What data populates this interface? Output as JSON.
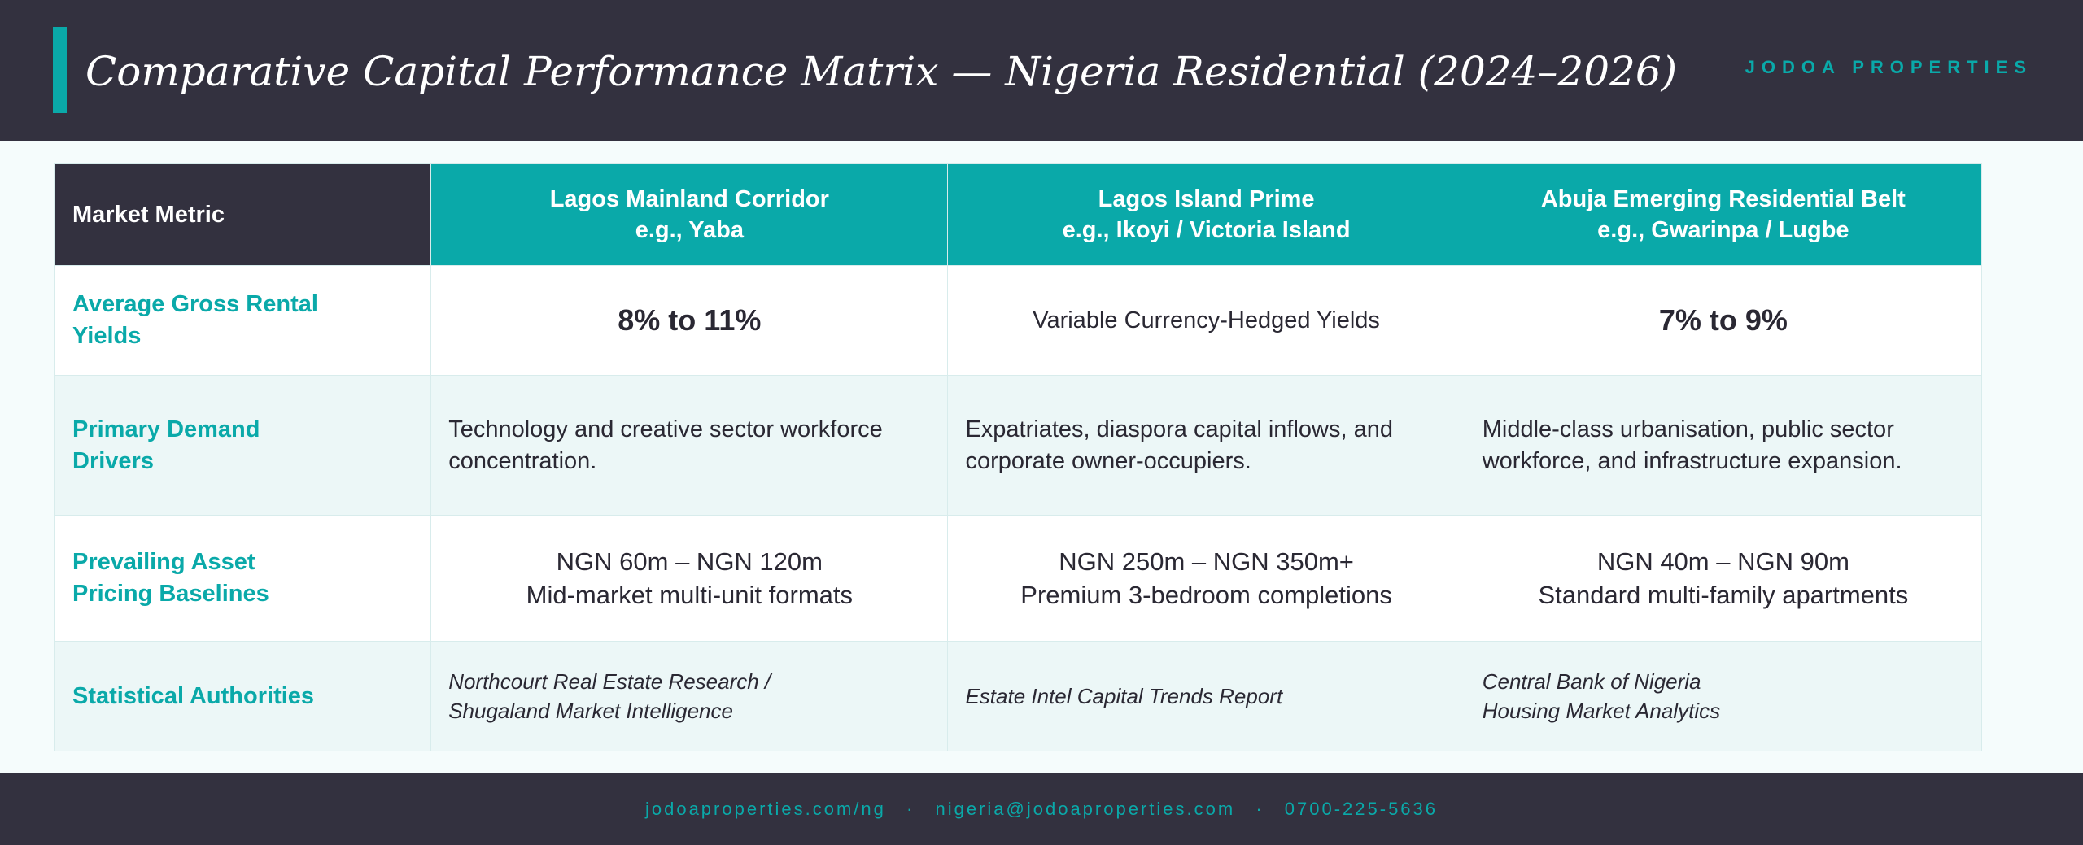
{
  "header": {
    "title": "Comparative Capital Performance Matrix — Nigeria Residential (2024–2026)",
    "brand": "JODOA PROPERTIES"
  },
  "table": {
    "metric_header": "Market Metric",
    "markets": [
      {
        "name": "Lagos Mainland Corridor",
        "example": "e.g., Yaba"
      },
      {
        "name": "Lagos Island Prime",
        "example": "e.g., Ikoyi / Victoria Island"
      },
      {
        "name": "Abuja Emerging Residential Belt",
        "example": "e.g., Gwarinpa / Lugbe"
      }
    ],
    "rows": {
      "yields": {
        "label": "Average Gross Rental Yields",
        "values": [
          "8% to 11%",
          "Variable Currency-Hedged Yields",
          "7% to 9%"
        ]
      },
      "drivers": {
        "label": "Primary Demand Drivers",
        "values": [
          "Technology and creative sector workforce concentration.",
          "Expatriates, diaspora capital inflows, and corporate owner-occupiers.",
          "Middle-class urbanisation, public sector workforce, and infrastructure expansion."
        ]
      },
      "pricing": {
        "label": "Prevailing Asset Pricing Baselines",
        "values": [
          {
            "range": "NGN 60m – NGN 120m",
            "format": "Mid-market multi-unit formats"
          },
          {
            "range": "NGN 250m – NGN 350m+",
            "format": "Premium 3-bedroom completions"
          },
          {
            "range": "NGN 40m – NGN 90m",
            "format": "Standard multi-family apartments"
          }
        ]
      },
      "authorities": {
        "label": "Statistical Authorities",
        "values": [
          {
            "line1": "Northcourt Real Estate Research /",
            "line2": "Shugaland Market Intelligence"
          },
          {
            "line1": "Estate Intel Capital Trends Report",
            "line2": ""
          },
          {
            "line1": "Central Bank of Nigeria",
            "line2": "Housing Market Analytics"
          }
        ]
      }
    }
  },
  "footer": {
    "website": "jodoaproperties.com/ng",
    "email": "nigeria@jodoaproperties.com",
    "phone": "0700-225-5636",
    "separator": "·"
  },
  "colors": {
    "header_bg": "#33313f",
    "accent": "#0aa9a9",
    "row_tint": "#ecf7f7",
    "text_dark": "#2a2833"
  }
}
